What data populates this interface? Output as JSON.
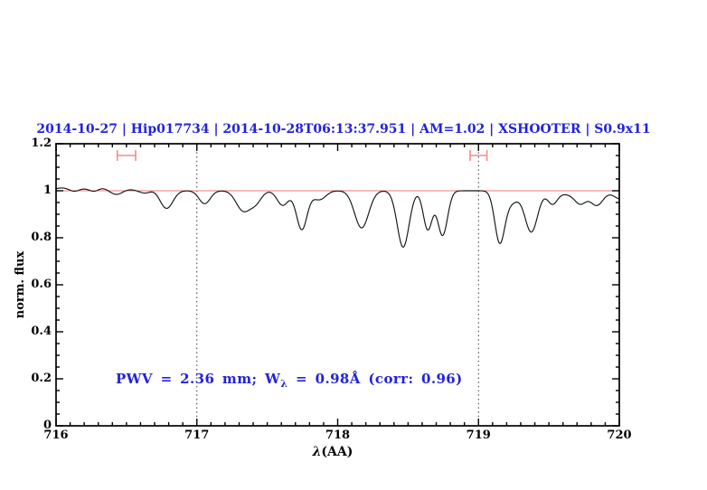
{
  "title": {
    "text": "2014-10-27 | Hip017734 | 2014-10-28T06:13:37.951 | AM=1.02 | XSHOOTER | S0.9x11",
    "color": "#2222dd"
  },
  "annotation": {
    "prefix": "PWV = 2.36 mm; W",
    "subscript": "λ",
    "suffix": " = 0.98Å (corr: 0.96)",
    "color": "#2222dd"
  },
  "axes": {
    "ylabel": "norm. flux",
    "xlabel_lambda": "λ",
    "xlabel_rest": "(AA)",
    "x_ticks": {
      "values": [
        716,
        717,
        718,
        719,
        720
      ],
      "labels": [
        "716",
        "717",
        "718",
        "719",
        "720"
      ],
      "minor_step": 0.1
    },
    "y_ticks": {
      "values": [
        0,
        0.2,
        0.4,
        0.6,
        0.8,
        1,
        1.2
      ],
      "labels": [
        "0",
        "0.2",
        "0.4",
        "0.6",
        "0.8",
        "1",
        "1.2"
      ],
      "minor_step": 0.05
    }
  },
  "chart_data": {
    "type": "line",
    "title": "2014-10-27 | Hip017734 | 2014-10-28T06:13:37.951 | AM=1.02 | XSHOOTER | S0.9x11",
    "xlabel": "λ(AA)",
    "ylabel": "norm. flux",
    "xlim": [
      716,
      720
    ],
    "ylim": [
      0,
      1.2
    ],
    "grid": false,
    "dotted_guides_x": [
      717,
      719
    ],
    "continuum": {
      "y": 1.0,
      "color": "#e87878"
    },
    "range_markers": [
      {
        "x_center": 716.5,
        "x_halfwidth": 0.065,
        "y": 1.15,
        "cap_halfheight": 0.023,
        "color": "#f08c8c"
      },
      {
        "x_center": 719.0,
        "x_halfwidth": 0.06,
        "y": 1.15,
        "cap_halfheight": 0.023,
        "color": "#f08c8c"
      }
    ],
    "spectrum": {
      "color": "#151515",
      "continuum_level": 1.0,
      "sample_step": 0.005,
      "features_format": [
        "center_AA",
        "amplitude(+bump/-absorption)",
        "sigma_AA"
      ],
      "features": [
        [
          716.04,
          0.012,
          0.05
        ],
        [
          716.13,
          -0.006,
          0.03
        ],
        [
          716.2,
          0.008,
          0.04
        ],
        [
          716.27,
          -0.006,
          0.03
        ],
        [
          716.33,
          0.01,
          0.035
        ],
        [
          716.43,
          -0.016,
          0.04
        ],
        [
          716.52,
          0.005,
          0.04
        ],
        [
          716.63,
          -0.01,
          0.035
        ],
        [
          716.7,
          0.004,
          0.03
        ],
        [
          716.785,
          -0.075,
          0.045
        ],
        [
          717.055,
          -0.055,
          0.04
        ],
        [
          717.33,
          -0.085,
          0.05
        ],
        [
          717.42,
          -0.045,
          0.04
        ],
        [
          717.61,
          -0.062,
          0.04
        ],
        [
          717.745,
          -0.165,
          0.038
        ],
        [
          717.87,
          -0.038,
          0.045
        ],
        [
          718.17,
          -0.158,
          0.05
        ],
        [
          718.465,
          -0.24,
          0.042
        ],
        [
          718.64,
          -0.165,
          0.032
        ],
        [
          718.745,
          -0.19,
          0.035
        ],
        [
          719.15,
          -0.21,
          0.035
        ],
        [
          719.23,
          -0.05,
          0.05
        ],
        [
          719.375,
          -0.175,
          0.045
        ],
        [
          719.525,
          -0.055,
          0.035
        ],
        [
          719.64,
          -0.015,
          0.06
        ],
        [
          719.725,
          -0.05,
          0.04
        ],
        [
          719.84,
          -0.062,
          0.045
        ],
        [
          720.01,
          -0.035,
          0.05
        ]
      ]
    }
  }
}
